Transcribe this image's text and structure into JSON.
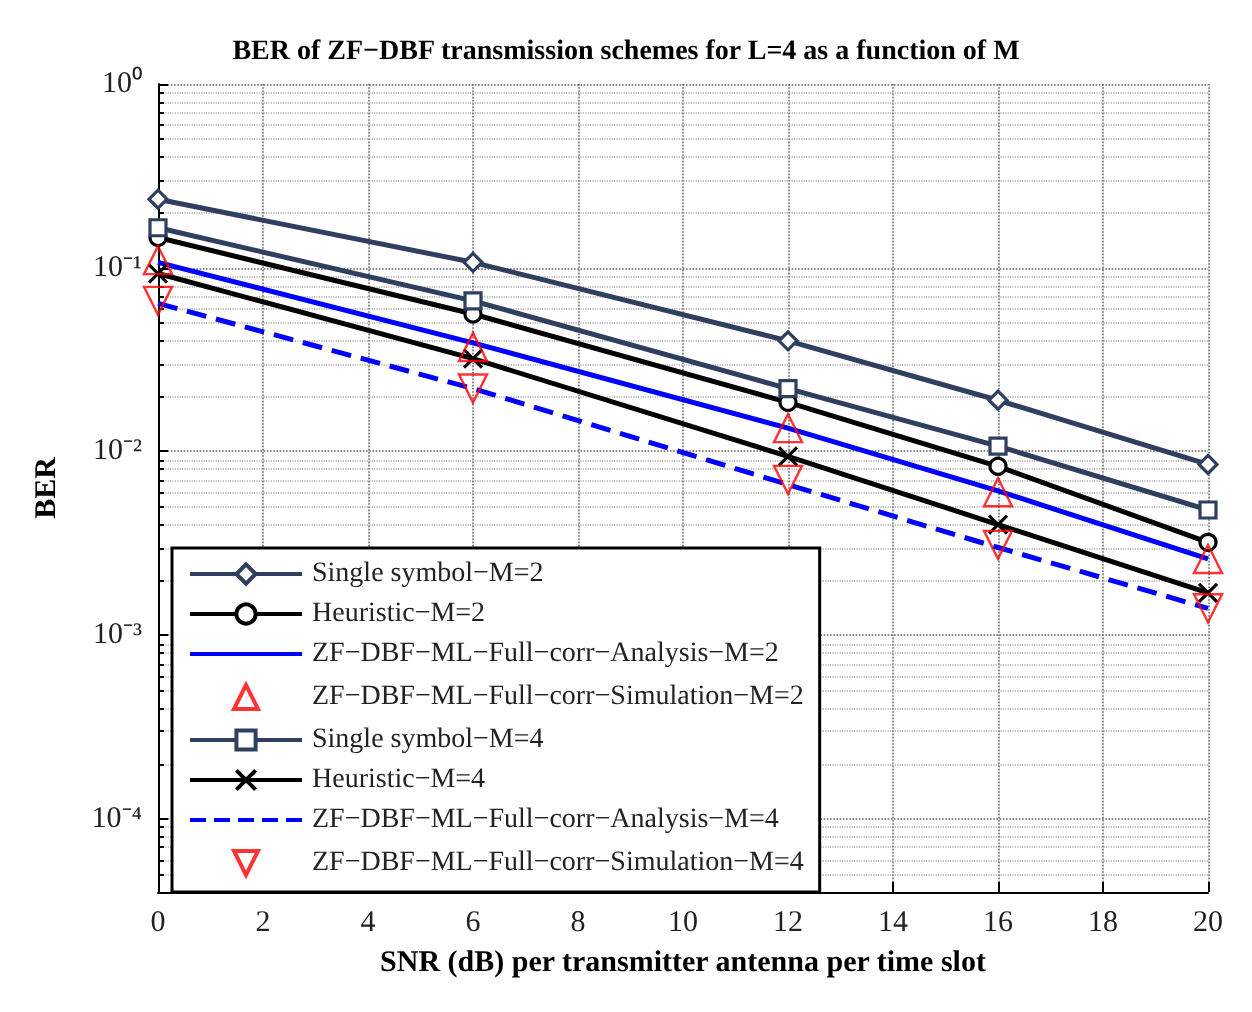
{
  "chart_data": {
    "type": "line",
    "title": "BER of ZF−DBF transmission schemes for L=4 as a function of M",
    "xlabel": "SNR (dB) per transmitter antenna per time slot",
    "ylabel": "BER",
    "x": [
      0,
      6,
      12,
      16,
      20
    ],
    "series": [
      {
        "name": "Single symbol−M=2",
        "color": "#2e3f5f",
        "marker": "diamond",
        "values": [
          0.236,
          0.107,
          0.04,
          0.019,
          0.0085
        ]
      },
      {
        "name": "Heuristic−M=2",
        "color": "#000000",
        "marker": "circle",
        "values": [
          0.146,
          0.056,
          0.0185,
          0.0083,
          0.0032
        ]
      },
      {
        "name": "ZF−DBF−ML−Full−corr−Analysis−M=2",
        "color": "#0000ff",
        "marker": "none",
        "values": [
          0.107,
          0.039,
          0.0134,
          0.0061,
          0.0026
        ]
      },
      {
        "name": "ZF−DBF−ML−Full−corr−Simulation−M=2",
        "type": "scatter",
        "color": "#ff0000",
        "marker": "triangle",
        "values": [
          0.11,
          0.037,
          0.0134,
          0.006,
          0.0026
        ]
      },
      {
        "name": "Single symbol−M=4",
        "color": "#2e3f5f",
        "marker": "square",
        "values": [
          0.165,
          0.066,
          0.022,
          0.0107,
          0.0048
        ]
      },
      {
        "name": "Heuristic−M=4",
        "color": "#000000",
        "marker": "cross",
        "values": [
          0.093,
          0.032,
          0.0094,
          0.004,
          0.0017
        ]
      },
      {
        "name": "ZF−DBF−ML−Full−corr−Analysis−M=4",
        "color": "#0000ff",
        "marker": "none",
        "line_style": "dashed",
        "values": [
          0.064,
          0.022,
          0.0066,
          0.003,
          0.0014
        ]
      },
      {
        "name": "ZF−DBF−ML−Full−corr−Simulation−M=4",
        "type": "scatter",
        "color": "#ff0000",
        "marker": "triangle-down",
        "values": [
          0.066,
          0.022,
          0.007,
          0.0031,
          0.0014
        ]
      }
    ],
    "log": "y",
    "xlim": [
      0,
      20
    ],
    "xticks": [
      0,
      2,
      4,
      6,
      8,
      10,
      12,
      14,
      16,
      18,
      20
    ],
    "ylim": [
      4e-05,
      1
    ],
    "yticks": [
      {
        "value": 0.0001,
        "label": "10⁻⁴"
      },
      {
        "value": 0.001,
        "label": "10⁻³"
      },
      {
        "value": 0.01,
        "label": "10⁻²"
      },
      {
        "value": 0.1,
        "label": "10⁻¹"
      },
      {
        "value": 1,
        "label": "10⁰"
      }
    ],
    "grid": true,
    "legend": "bottom left"
  }
}
